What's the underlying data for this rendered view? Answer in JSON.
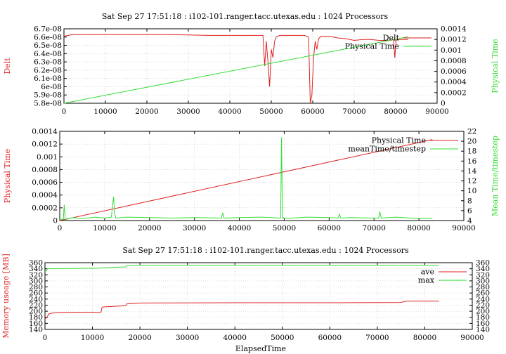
{
  "colors": {
    "red": "#dd2222",
    "green": "#33dd33",
    "grid": "#c8c8c8",
    "axis": "#000000",
    "text": "#000000"
  },
  "chart_data": [
    {
      "type": "line",
      "title": "Sat Sep 27 17:51:18 : i102-101.ranger.tacc.utexas.edu : 1024 Processors",
      "xlabel": "",
      "ylabel": "Delt",
      "y2label": "Physical Time",
      "xlim": [
        0,
        90000
      ],
      "ylim": [
        5.8e-08,
        6.7e-08
      ],
      "y2lim": [
        0,
        0.0014
      ],
      "grid": true,
      "legend_position": "top-right",
      "xticks": [
        "0",
        "10000",
        "20000",
        "30000",
        "40000",
        "50000",
        "60000",
        "70000",
        "80000",
        "90000"
      ],
      "yticks": [
        "5.8e-08",
        "5.9e-08",
        "6e-08",
        "6.1e-08",
        "6.2e-08",
        "6.3e-08",
        "6.4e-08",
        "6.5e-08",
        "6.6e-08",
        "6.7e-08"
      ],
      "y2ticks": [
        "0",
        "0.0002",
        "0.0004",
        "0.0006",
        "0.0008",
        "0.001",
        "0.0012",
        "0.0014"
      ],
      "series": [
        {
          "name": "Delt",
          "axis": "y",
          "color": "#dd2222",
          "x": [
            0,
            2000,
            8000,
            15000,
            25000,
            35000,
            45000,
            48000,
            48400,
            48800,
            49200,
            49600,
            50000,
            50400,
            50800,
            51200,
            52000,
            55000,
            58000,
            59000,
            59400,
            59800,
            60200,
            60600,
            61000,
            61400,
            62000,
            64000,
            66000,
            68000,
            70000,
            72000,
            74000,
            76000,
            78000,
            79500,
            79800,
            80100,
            80400,
            81000,
            82000,
            83000
          ],
          "y": [
            6.61e-08,
            6.63e-08,
            6.63e-08,
            6.63e-08,
            6.63e-08,
            6.62e-08,
            6.62e-08,
            6.62e-08,
            6.25e-08,
            6.55e-08,
            6.3e-08,
            6e-08,
            6.45e-08,
            6.35e-08,
            6.55e-08,
            6.6e-08,
            6.62e-08,
            6.62e-08,
            6.62e-08,
            6.6e-08,
            5.8e-08,
            5.9e-08,
            6.35e-08,
            6.55e-08,
            6.45e-08,
            6.58e-08,
            6.61e-08,
            6.61e-08,
            6.59e-08,
            6.58e-08,
            6.56e-08,
            6.57e-08,
            6.57e-08,
            6.56e-08,
            6.56e-08,
            6.57e-08,
            6.35e-08,
            6.56e-08,
            6.57e-08,
            6.57e-08,
            6.57e-08,
            6.57e-08
          ]
        },
        {
          "name": "Physical Time",
          "axis": "y2",
          "color": "#33dd33",
          "x": [
            0,
            83000
          ],
          "y": [
            0,
            0.00125
          ]
        }
      ]
    },
    {
      "type": "line",
      "title": "",
      "xlabel": "",
      "ylabel": "Physical Time",
      "y2label": "Mean Time/timestep",
      "xlim": [
        0,
        90000
      ],
      "ylim": [
        0,
        0.0014
      ],
      "y2lim": [
        4,
        22
      ],
      "grid": true,
      "legend_position": "top-right",
      "xticks": [
        "0",
        "10000",
        "20000",
        "30000",
        "40000",
        "50000",
        "60000",
        "70000",
        "80000",
        "90000"
      ],
      "yticks": [
        "0",
        "0.0002",
        "0.0004",
        "0.0006",
        "0.0008",
        "0.001",
        "0.0012",
        "0.0014"
      ],
      "y2ticks": [
        "4",
        "6",
        "8",
        "10",
        "12",
        "14",
        "16",
        "18",
        "20",
        "22"
      ],
      "series": [
        {
          "name": "Physical Time",
          "axis": "y",
          "color": "#dd2222",
          "x": [
            0,
            83000
          ],
          "y": [
            0,
            0.00127
          ]
        },
        {
          "name": "meanTime/timestep",
          "axis": "y2",
          "color": "#33dd33",
          "x": [
            0,
            800,
            1000,
            1200,
            1400,
            3000,
            5000,
            8000,
            10000,
            11500,
            11800,
            12000,
            12200,
            12500,
            15000,
            20000,
            25000,
            30000,
            36000,
            36300,
            36600,
            40000,
            45000,
            49200,
            49400,
            49600,
            49800,
            50000,
            55000,
            60000,
            62000,
            62300,
            62600,
            65000,
            71000,
            71300,
            71600,
            75000,
            80000,
            83000
          ],
          "y": [
            4.2,
            4.3,
            7.2,
            4.4,
            4.2,
            4.6,
            4.4,
            4.7,
            4.5,
            4.7,
            7.4,
            8.8,
            5.5,
            4.5,
            4.7,
            4.6,
            4.5,
            4.6,
            4.5,
            5.6,
            4.5,
            4.6,
            4.7,
            4.5,
            20.8,
            4.5,
            4.6,
            4.4,
            4.7,
            4.6,
            4.5,
            5.3,
            4.5,
            4.6,
            4.5,
            5.8,
            4.5,
            4.7,
            4.4,
            4.5
          ]
        }
      ]
    },
    {
      "type": "line",
      "title": "Sat Sep 27 17:51:18 : i102-101.ranger.tacc.utexas.edu : 1024 Processors",
      "xlabel": "ElapsedTime",
      "ylabel": "Memory useage [MB]",
      "y2label": "",
      "xlim": [
        0,
        90000
      ],
      "ylim": [
        140,
        360
      ],
      "y2lim": [
        140,
        360
      ],
      "grid": true,
      "legend_position": "top-right",
      "xticks": [
        "0",
        "10000",
        "20000",
        "30000",
        "40000",
        "50000",
        "60000",
        "70000",
        "80000",
        "90000"
      ],
      "yticks": [
        "140",
        "160",
        "180",
        "200",
        "220",
        "240",
        "260",
        "280",
        "300",
        "320",
        "340",
        "360"
      ],
      "y2ticks": [
        "140",
        "160",
        "180",
        "200",
        "220",
        "240",
        "260",
        "280",
        "300",
        "320",
        "340",
        "360"
      ],
      "series": [
        {
          "name": "ave",
          "axis": "y",
          "color": "#dd2222",
          "x": [
            0,
            500,
            700,
            1000,
            1500,
            3000,
            11800,
            12000,
            12200,
            17000,
            17200,
            19000,
            20000,
            40000,
            60000,
            75000,
            76000,
            83000
          ],
          "y": [
            176,
            180,
            190,
            192,
            194,
            196,
            197,
            212,
            214,
            218,
            224,
            226,
            227,
            228,
            228,
            229,
            233,
            233
          ]
        },
        {
          "name": "max",
          "axis": "y",
          "color": "#33dd33",
          "x": [
            0,
            300,
            500,
            5000,
            11800,
            12000,
            17000,
            17200,
            20000,
            83000
          ],
          "y": [
            331,
            333,
            340,
            341,
            342,
            343,
            346,
            350,
            352,
            352
          ]
        }
      ]
    }
  ]
}
